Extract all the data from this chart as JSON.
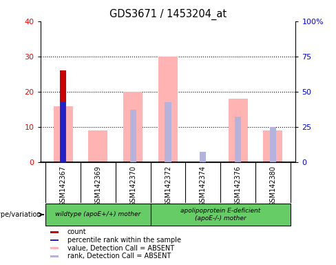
{
  "title": "GDS3671 / 1453204_at",
  "samples": [
    "GSM142367",
    "GSM142369",
    "GSM142370",
    "GSM142372",
    "GSM142374",
    "GSM142376",
    "GSM142380"
  ],
  "count": [
    26,
    0,
    0,
    0,
    0,
    0,
    0
  ],
  "percentile_rank": [
    17,
    0,
    0,
    0,
    0,
    0,
    0
  ],
  "value_absent": [
    16,
    9,
    20,
    30,
    0,
    18,
    9
  ],
  "rank_absent": [
    0,
    0,
    15,
    17,
    3,
    13,
    10
  ],
  "left_ylim": [
    0,
    40
  ],
  "left_yticks": [
    0,
    10,
    20,
    30,
    40
  ],
  "right_yticks": [
    0,
    10,
    20,
    30,
    40
  ],
  "right_yticklabels": [
    "0",
    "25",
    "50",
    "75",
    "100%"
  ],
  "color_count": "#cc0000",
  "color_percentile": "#2222cc",
  "color_value_absent": "#ffb3b3",
  "color_rank_absent": "#b3b3dd",
  "n_wildtype": 3,
  "wildtype_label": "wildtype (apoE+/+) mother",
  "apoe_label": "apolipoprotein E-deficient\n(apoE-/-) mother",
  "genotype_label": "genotype/variation",
  "legend_items": [
    {
      "label": "count",
      "color": "#cc0000"
    },
    {
      "label": "percentile rank within the sample",
      "color": "#2222cc"
    },
    {
      "label": "value, Detection Call = ABSENT",
      "color": "#ffb3b3"
    },
    {
      "label": "rank, Detection Call = ABSENT",
      "color": "#b3b3dd"
    }
  ],
  "bar_width": 0.55,
  "narrow_bar_width": 0.18,
  "cell_bg": "#d8d8d8",
  "group_bg": "#66cc66",
  "plot_bg": "#ffffff"
}
